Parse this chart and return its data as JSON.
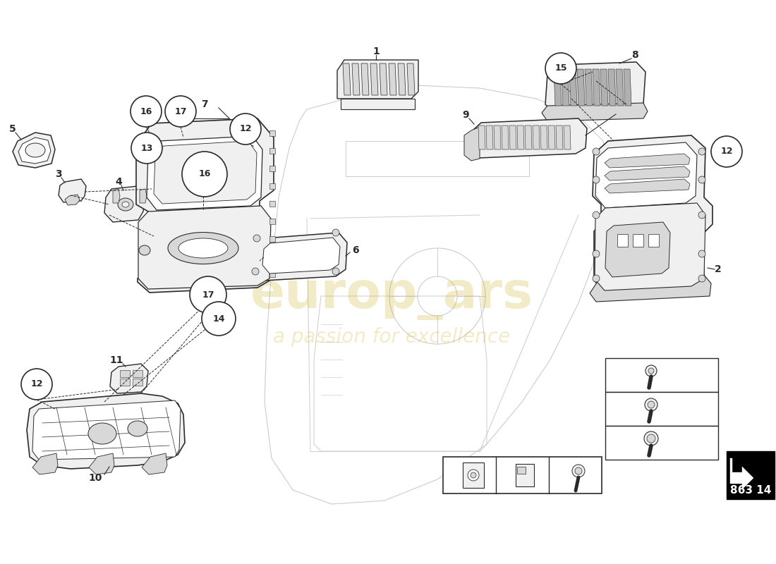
{
  "bg_color": "#ffffff",
  "part_number": "863 14",
  "watermark_text": "europ_ars",
  "watermark_subtext": "a passion for excellence",
  "line_color": "#2a2a2a",
  "fill_light": "#f0f0f0",
  "fill_mid": "#d8d8d8",
  "fill_dark": "#b0b0b0"
}
